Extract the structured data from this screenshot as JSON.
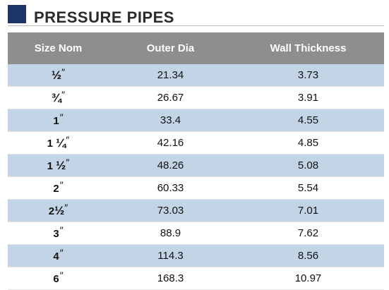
{
  "header": {
    "title": "PRESSURE PIPES"
  },
  "colors": {
    "accent_square": "#1c3568",
    "header_row": "#8e8e8e",
    "alt_row": "#c3d4e7",
    "plain_row": "#ffffff"
  },
  "table": {
    "columns": [
      "Size  Nom",
      "Outer Dia",
      "Wall Thickness"
    ],
    "inch_mark": "″",
    "rows": [
      {
        "size_whole": "",
        "size_frac": "½",
        "outer_dia": "21.34",
        "wall": "3.73"
      },
      {
        "size_whole": "",
        "size_frac": "¾",
        "outer_dia": "26.67",
        "wall": "3.91"
      },
      {
        "size_whole": "1",
        "size_frac": "",
        "outer_dia": "33.4",
        "wall": "4.55"
      },
      {
        "size_whole": "1 ",
        "size_frac": "¼",
        "outer_dia": "42.16",
        "wall": "4.85"
      },
      {
        "size_whole": "1 ",
        "size_frac": "½",
        "outer_dia": "48.26",
        "wall": "5.08"
      },
      {
        "size_whole": "2",
        "size_frac": "",
        "outer_dia": "60.33",
        "wall": "5.54"
      },
      {
        "size_whole": "2",
        "size_frac": "½",
        "outer_dia": "73.03",
        "wall": "7.01"
      },
      {
        "size_whole": "3",
        "size_frac": "",
        "outer_dia": "88.9",
        "wall": "7.62"
      },
      {
        "size_whole": "4",
        "size_frac": "",
        "outer_dia": "114.3",
        "wall": "8.56"
      },
      {
        "size_whole": "6",
        "size_frac": "",
        "outer_dia": "168.3",
        "wall": "10.97"
      }
    ]
  }
}
